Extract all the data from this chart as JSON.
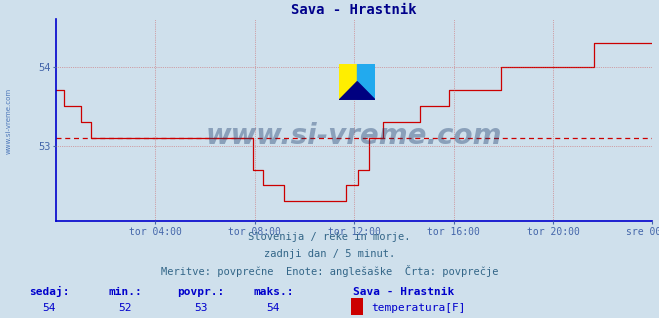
{
  "title": "Sava - Hrastnik",
  "bg_color": "#cfe0ec",
  "plot_bg_color": "#cfe0ec",
  "line_color": "#cc0000",
  "avg_line_color": "#cc0000",
  "avg_value": 53.1,
  "ylim": [
    52.05,
    54.6
  ],
  "yticks": [
    53,
    54
  ],
  "x_tick_labels": [
    "tor 04:00",
    "tor 08:00",
    "tor 12:00",
    "tor 16:00",
    "tor 20:00",
    "sre 00:00"
  ],
  "x_tick_positions": [
    48,
    96,
    144,
    192,
    240,
    288
  ],
  "total_points": 289,
  "title_color": "#00008b",
  "axis_color": "#0000cc",
  "tick_color": "#4466aa",
  "grid_color": "#cc4444",
  "watermark_text": "www.si-vreme.com",
  "watermark_color": "#1a3a6a",
  "sub_text1": "Slovenija / reke in morje.",
  "sub_text2": "zadnji dan / 5 minut.",
  "sub_text3": "Meritve: povprečne  Enote: anglešaške  Črta: povprečje",
  "footer_sedaj_label": "sedaj:",
  "footer_min_label": "min.:",
  "footer_povpr_label": "povpr.:",
  "footer_maks_label": "maks.:",
  "footer_sedaj": "54",
  "footer_min": "52",
  "footer_povpr": "53",
  "footer_maks": "54",
  "footer_station": "Sava - Hrastnik",
  "footer_param": "temperatura[F]",
  "footer_color": "#0000cc",
  "temperature_data": [
    53.7,
    53.7,
    53.7,
    53.7,
    53.5,
    53.5,
    53.5,
    53.5,
    53.5,
    53.5,
    53.5,
    53.5,
    53.3,
    53.3,
    53.3,
    53.3,
    53.3,
    53.1,
    53.1,
    53.1,
    53.1,
    53.1,
    53.1,
    53.1,
    53.1,
    53.1,
    53.1,
    53.1,
    53.1,
    53.1,
    53.1,
    53.1,
    53.1,
    53.1,
    53.1,
    53.1,
    53.1,
    53.1,
    53.1,
    53.1,
    53.1,
    53.1,
    53.1,
    53.1,
    53.1,
    53.1,
    53.1,
    53.1,
    53.1,
    53.1,
    53.1,
    53.1,
    53.1,
    53.1,
    53.1,
    53.1,
    53.1,
    53.1,
    53.1,
    53.1,
    53.1,
    53.1,
    53.1,
    53.1,
    53.1,
    53.1,
    53.1,
    53.1,
    53.1,
    53.1,
    53.1,
    53.1,
    53.1,
    53.1,
    53.1,
    53.1,
    53.1,
    53.1,
    53.1,
    53.1,
    53.1,
    53.1,
    53.1,
    53.1,
    53.1,
    53.1,
    53.1,
    53.1,
    53.1,
    53.1,
    53.1,
    53.1,
    53.1,
    53.1,
    53.1,
    52.7,
    52.7,
    52.7,
    52.7,
    52.7,
    52.5,
    52.5,
    52.5,
    52.5,
    52.5,
    52.5,
    52.5,
    52.5,
    52.5,
    52.5,
    52.3,
    52.3,
    52.3,
    52.3,
    52.3,
    52.3,
    52.3,
    52.3,
    52.3,
    52.3,
    52.3,
    52.3,
    52.3,
    52.3,
    52.3,
    52.3,
    52.3,
    52.3,
    52.3,
    52.3,
    52.3,
    52.3,
    52.3,
    52.3,
    52.3,
    52.3,
    52.3,
    52.3,
    52.3,
    52.3,
    52.5,
    52.5,
    52.5,
    52.5,
    52.5,
    52.5,
    52.7,
    52.7,
    52.7,
    52.7,
    52.7,
    53.1,
    53.1,
    53.1,
    53.1,
    53.1,
    53.1,
    53.1,
    53.3,
    53.3,
    53.3,
    53.3,
    53.3,
    53.3,
    53.3,
    53.3,
    53.3,
    53.3,
    53.3,
    53.3,
    53.3,
    53.3,
    53.3,
    53.3,
    53.3,
    53.3,
    53.5,
    53.5,
    53.5,
    53.5,
    53.5,
    53.5,
    53.5,
    53.5,
    53.5,
    53.5,
    53.5,
    53.5,
    53.5,
    53.5,
    53.7,
    53.7,
    53.7,
    53.7,
    53.7,
    53.7,
    53.7,
    53.7,
    53.7,
    53.7,
    53.7,
    53.7,
    53.7,
    53.7,
    53.7,
    53.7,
    53.7,
    53.7,
    53.7,
    53.7,
    53.7,
    53.7,
    53.7,
    53.7,
    53.7,
    54.0,
    54.0,
    54.0,
    54.0,
    54.0,
    54.0,
    54.0,
    54.0,
    54.0,
    54.0,
    54.0,
    54.0,
    54.0,
    54.0,
    54.0,
    54.0,
    54.0,
    54.0,
    54.0,
    54.0,
    54.0,
    54.0,
    54.0,
    54.0,
    54.0,
    54.0,
    54.0,
    54.0,
    54.0,
    54.0,
    54.0,
    54.0,
    54.0,
    54.0,
    54.0,
    54.0,
    54.0,
    54.0,
    54.0,
    54.0,
    54.0,
    54.0,
    54.0,
    54.0,
    54.0,
    54.3,
    54.3,
    54.3,
    54.3,
    54.3,
    54.3,
    54.3,
    54.3,
    54.3,
    54.3,
    54.3,
    54.3,
    54.3,
    54.3,
    54.3,
    54.3,
    54.3,
    54.3,
    54.3,
    54.3,
    54.3,
    54.3,
    54.3,
    54.3,
    54.3,
    54.3,
    54.3,
    54.3,
    54.3,
    54.5
  ]
}
